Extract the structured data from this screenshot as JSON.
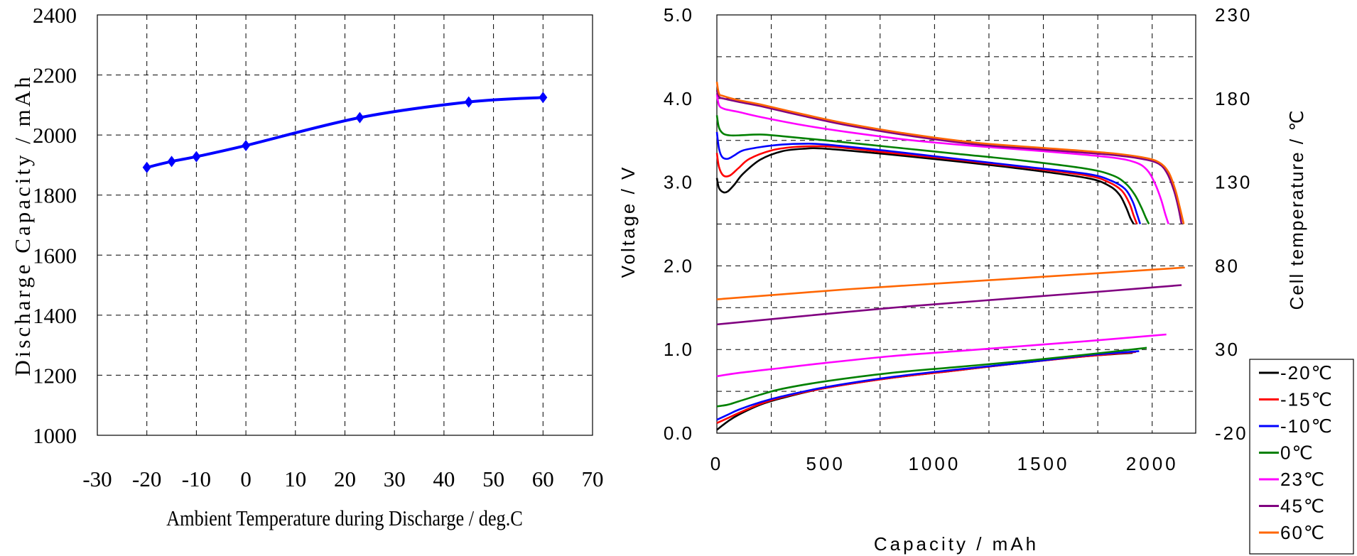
{
  "chart_data": [
    {
      "type": "line",
      "title": "",
      "xlabel": "Ambient Temperature during Discharge / deg.C",
      "ylabel": "Discharge Capacity / mAh",
      "xlim": [
        -30,
        70
      ],
      "ylim": [
        1000,
        2400
      ],
      "xticks": [
        "-30",
        "-20",
        "-10",
        "0",
        "10",
        "20",
        "30",
        "40",
        "50",
        "60",
        "70"
      ],
      "yticks": [
        "1000",
        "1200",
        "1400",
        "1600",
        "1800",
        "2000",
        "2200",
        "2400"
      ],
      "grid": true,
      "marker": "diamond",
      "color": "#0000ff",
      "series": [
        {
          "x": [
            -20,
            -15,
            -10,
            0,
            23,
            45,
            60
          ],
          "y": [
            1892,
            1912,
            1928,
            1965,
            2058,
            2110,
            2125
          ]
        }
      ]
    },
    {
      "type": "line",
      "title": "",
      "xlabel": "Capacity / mAh",
      "ylabel": "Voltage / V",
      "ylabel_right": "Cell temperature / ℃",
      "xlim": [
        0,
        2200
      ],
      "ylim": [
        0,
        5
      ],
      "ylim_right": [
        -20,
        230
      ],
      "xticks": [
        "0",
        "500",
        "1000",
        "1500",
        "2000"
      ],
      "yticks": [
        "0.0",
        "1.0",
        "2.0",
        "3.0",
        "4.0",
        "5.0"
      ],
      "yticks_right": [
        "-20",
        "30",
        "80",
        "130",
        "180",
        "230"
      ],
      "grid": true,
      "legend": "right, outside plot",
      "series": [
        {
          "name": "-20℃",
          "color": "#000000",
          "voltage": {
            "x": [
              0,
              10,
              30,
              50,
              80,
              120,
              200,
              300,
              400,
              500,
              800,
              1100,
              1400,
              1700,
              1800,
              1850,
              1880,
              1900,
              1915
            ],
            "y": [
              3.05,
              2.93,
              2.88,
              2.89,
              2.97,
              3.1,
              3.27,
              3.37,
              3.4,
              3.4,
              3.33,
              3.25,
              3.16,
              3.05,
              2.96,
              2.85,
              2.7,
              2.57,
              2.5
            ]
          },
          "temperature": {
            "x": [
              0,
              50,
              100,
              200,
              300,
              500,
              800,
              1100,
              1400,
              1700,
              1910
            ],
            "y": [
              -18,
              -13,
              -9,
              -3,
              1,
              7,
              13,
              17.5,
              22,
              26,
              28
            ]
          }
        },
        {
          "name": "-15℃",
          "color": "#ff0000",
          "voltage": {
            "x": [
              0,
              10,
              30,
              60,
              100,
              150,
              250,
              350,
              450,
              550,
              800,
              1100,
              1400,
              1700,
              1800,
              1860,
              1895,
              1915,
              1930
            ],
            "y": [
              3.35,
              3.18,
              3.08,
              3.08,
              3.17,
              3.28,
              3.38,
              3.42,
              3.43,
              3.42,
              3.35,
              3.27,
              3.18,
              3.08,
              3.0,
              2.9,
              2.75,
              2.6,
              2.5
            ]
          },
          "temperature": {
            "x": [
              0,
              50,
              100,
              200,
              300,
              500,
              800,
              1100,
              1400,
              1700,
              1925
            ],
            "y": [
              -14,
              -11,
              -8,
              -2.5,
              1.5,
              7,
              13,
              17.5,
              22,
              26,
              28.5
            ]
          }
        },
        {
          "name": "-10℃",
          "color": "#0000ff",
          "voltage": {
            "x": [
              0,
              10,
              25,
              50,
              80,
              120,
              200,
              300,
              400,
              500,
              800,
              1100,
              1400,
              1700,
              1810,
              1875,
              1910,
              1930,
              1945
            ],
            "y": [
              3.6,
              3.4,
              3.3,
              3.28,
              3.32,
              3.38,
              3.42,
              3.45,
              3.46,
              3.45,
              3.37,
              3.28,
              3.19,
              3.1,
              3.02,
              2.92,
              2.77,
              2.62,
              2.5
            ]
          },
          "temperature": {
            "x": [
              0,
              50,
              100,
              200,
              300,
              500,
              800,
              1100,
              1400,
              1700,
              1940
            ],
            "y": [
              -12,
              -9,
              -6,
              -1.5,
              2,
              7.5,
              13.5,
              18,
              22,
              26.5,
              29
            ]
          }
        },
        {
          "name": "0℃",
          "color": "#008000",
          "voltage": {
            "x": [
              0,
              10,
              30,
              60,
              100,
              200,
              300,
              500,
              800,
              1100,
              1400,
              1700,
              1820,
              1880,
              1920,
              1950,
              1970,
              1985
            ],
            "y": [
              3.8,
              3.65,
              3.58,
              3.56,
              3.56,
              3.57,
              3.55,
              3.5,
              3.42,
              3.34,
              3.26,
              3.16,
              3.08,
              2.98,
              2.85,
              2.7,
              2.58,
              2.5
            ]
          },
          "temperature": {
            "x": [
              0,
              50,
              100,
              200,
              300,
              500,
              800,
              1100,
              1400,
              1700,
              1975
            ],
            "y": [
              -4,
              -3,
              -1,
              3,
              6.5,
              11,
              16,
              19.5,
              23,
              27,
              31
            ]
          }
        },
        {
          "name": "23℃",
          "color": "#ff00ff",
          "voltage": {
            "x": [
              0,
              10,
              30,
              60,
              100,
              200,
              400,
              600,
              900,
              1200,
              1500,
              1800,
              1920,
              1975,
              2010,
              2040,
              2060,
              2075
            ],
            "y": [
              4.05,
              3.92,
              3.88,
              3.86,
              3.84,
              3.78,
              3.68,
              3.6,
              3.5,
              3.43,
              3.37,
              3.3,
              3.24,
              3.15,
              3.0,
              2.8,
              2.62,
              2.5
            ]
          },
          "temperature": {
            "x": [
              0,
              100,
              300,
              500,
              800,
              1100,
              1400,
              1700,
              2065
            ],
            "y": [
              14,
              16,
              19,
              22,
              26,
              29,
              32,
              35,
              39
            ]
          }
        },
        {
          "name": "45℃",
          "color": "#800080",
          "voltage": {
            "x": [
              0,
              10,
              30,
              100,
              200,
              400,
              600,
              900,
              1200,
              1500,
              1800,
              1950,
              2030,
              2070,
              2100,
              2120,
              2135
            ],
            "y": [
              4.1,
              4.02,
              4.0,
              3.96,
              3.91,
              3.79,
              3.68,
              3.55,
              3.45,
              3.39,
              3.33,
              3.28,
              3.22,
              3.1,
              2.9,
              2.7,
              2.5
            ]
          },
          "temperature": {
            "x": [
              0,
              200,
              400,
              600,
              900,
              1200,
              1500,
              1800,
              2135
            ],
            "y": [
              45,
              47.5,
              50,
              52.5,
              56,
              59,
              62,
              65,
              68.5
            ]
          }
        },
        {
          "name": "60℃",
          "color": "#ff6600",
          "voltage": {
            "x": [
              0,
              10,
              30,
              100,
              200,
              400,
              600,
              900,
              1200,
              1500,
              1800,
              1950,
              2030,
              2075,
              2105,
              2125,
              2145
            ],
            "y": [
              4.2,
              4.06,
              4.03,
              3.98,
              3.93,
              3.81,
              3.7,
              3.57,
              3.47,
              3.41,
              3.35,
              3.3,
              3.24,
              3.12,
              2.92,
              2.72,
              2.5
            ]
          },
          "temperature": {
            "x": [
              0,
              300,
              600,
              900,
              1200,
              1500,
              1800,
              2150
            ],
            "y": [
              60,
              63,
              66,
              68.5,
              71,
              73.5,
              76,
              79
            ]
          }
        }
      ]
    }
  ]
}
